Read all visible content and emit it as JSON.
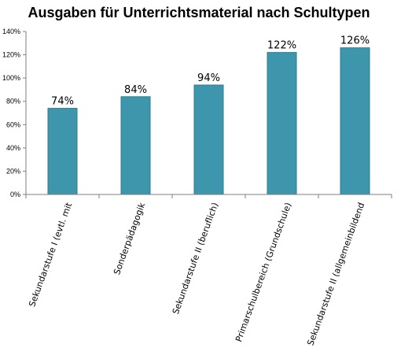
{
  "chart_data": {
    "type": "bar",
    "title": "Ausgaben für Unterrichtsmaterial nach Schultypen",
    "xlabel": "",
    "ylabel": "",
    "categories": [
      "Sekundarstufe I (evtl. mit",
      "Sonderpädagogik",
      "Sekundarstufe II (beruflich)",
      "Primarschulbereich (Grundschule)",
      "Sekundarstufe II (allgemeinbildend"
    ],
    "values": [
      74,
      84,
      94,
      122,
      126
    ],
    "data_labels": [
      "74%",
      "84%",
      "94%",
      "122%",
      "126%"
    ],
    "ylim": [
      0,
      140
    ],
    "yticks": [
      0,
      20,
      40,
      60,
      80,
      100,
      120,
      140
    ],
    "ytick_labels": [
      "0%",
      "20%",
      "40%",
      "60%",
      "80%",
      "100%",
      "120%",
      "140%"
    ],
    "grid": false,
    "legend": "none",
    "bar_color": "#3D96AB",
    "bar_edge_color": "#2E7E92"
  }
}
